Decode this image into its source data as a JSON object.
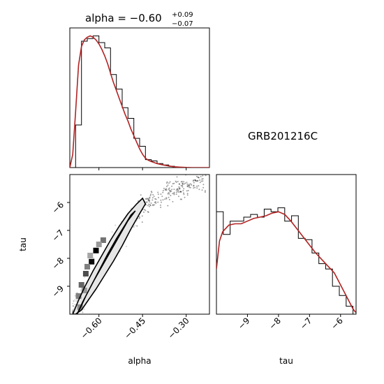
{
  "title": {
    "prefix": "alpha = −0.60",
    "upper": "+0.09",
    "lower": "−0.07"
  },
  "annotation": "GRB201216C",
  "colors": {
    "kde": "#b22222",
    "hist": "#000000",
    "contour": "#000000"
  },
  "chart_data": [
    {
      "type": "histogram",
      "panel": "alpha-marginal",
      "xlim": [
        -0.7,
        -0.22
      ],
      "ylim": [
        0,
        1.05
      ],
      "bin_edges": [
        -0.7,
        -0.68,
        -0.66,
        -0.64,
        -0.62,
        -0.6,
        -0.58,
        -0.56,
        -0.54,
        -0.52,
        -0.5,
        -0.48,
        -0.46,
        -0.44,
        -0.42,
        -0.4,
        -0.38,
        -0.36,
        -0.34,
        -0.32,
        -0.3,
        -0.28,
        -0.26,
        -0.24
      ],
      "counts": [
        0.0,
        0.32,
        0.95,
        0.97,
        0.99,
        0.94,
        0.9,
        0.7,
        0.59,
        0.45,
        0.37,
        0.22,
        0.16,
        0.06,
        0.05,
        0.03,
        0.02,
        0.01,
        0.0,
        0.0,
        0.0,
        0.0,
        0.0
      ],
      "kde": {
        "x": [
          -0.7,
          -0.69,
          -0.68,
          -0.67,
          -0.66,
          -0.65,
          -0.64,
          -0.63,
          -0.62,
          -0.61,
          -0.6,
          -0.59,
          -0.58,
          -0.57,
          -0.56,
          -0.55,
          -0.54,
          -0.53,
          -0.52,
          -0.51,
          -0.5,
          -0.49,
          -0.48,
          -0.47,
          -0.46,
          -0.45,
          -0.44,
          -0.43,
          -0.42,
          -0.4,
          -0.38,
          -0.36,
          -0.34,
          -0.32,
          -0.3,
          -0.28,
          -0.26,
          -0.24,
          -0.22
        ],
        "y": [
          0.0,
          0.1,
          0.42,
          0.77,
          0.91,
          0.96,
          0.98,
          0.99,
          0.98,
          0.96,
          0.93,
          0.89,
          0.84,
          0.78,
          0.71,
          0.64,
          0.58,
          0.52,
          0.46,
          0.4,
          0.35,
          0.29,
          0.24,
          0.19,
          0.14,
          0.1,
          0.07,
          0.055,
          0.045,
          0.03,
          0.02,
          0.012,
          0.006,
          0.003,
          0.001,
          0.0,
          0.0,
          0.0,
          0.0
        ]
      },
      "xticks": [
        -0.6,
        -0.45,
        -0.3
      ]
    },
    {
      "type": "histogram",
      "panel": "tau-marginal",
      "xlim": [
        -10.0,
        -5.5
      ],
      "ylim": [
        0,
        1.05
      ],
      "bin_edges": [
        -10.0,
        -9.78,
        -9.56,
        -9.34,
        -9.12,
        -8.9,
        -8.68,
        -8.46,
        -8.24,
        -8.02,
        -7.8,
        -7.58,
        -7.36,
        -7.14,
        -6.92,
        -6.7,
        -6.48,
        -6.26,
        -6.04,
        -5.82,
        -5.6,
        -5.5
      ],
      "counts": [
        0.77,
        0.6,
        0.7,
        0.7,
        0.73,
        0.75,
        0.73,
        0.79,
        0.77,
        0.8,
        0.7,
        0.74,
        0.57,
        0.56,
        0.46,
        0.38,
        0.34,
        0.21,
        0.14,
        0.06,
        0.0
      ],
      "kde": {
        "x": [
          -10.0,
          -9.9,
          -9.8,
          -9.6,
          -9.4,
          -9.2,
          -9.0,
          -8.8,
          -8.6,
          -8.4,
          -8.2,
          -8.0,
          -7.8,
          -7.6,
          -7.4,
          -7.2,
          -7.0,
          -6.8,
          -6.6,
          -6.4,
          -6.2,
          -6.0,
          -5.8,
          -5.6,
          -5.5
        ],
        "y": [
          0.34,
          0.55,
          0.62,
          0.67,
          0.68,
          0.68,
          0.7,
          0.72,
          0.73,
          0.74,
          0.76,
          0.77,
          0.75,
          0.7,
          0.64,
          0.58,
          0.52,
          0.46,
          0.41,
          0.36,
          0.31,
          0.22,
          0.13,
          0.04,
          0.01
        ]
      },
      "xticks": [
        -9,
        -8,
        -7,
        -6
      ],
      "xlabel": "tau"
    },
    {
      "type": "scatter",
      "panel": "alpha-tau-joint",
      "xlim": [
        -0.7,
        -0.22
      ],
      "ylim": [
        -10.0,
        -5.0
      ],
      "xticks": [
        -0.6,
        -0.45,
        -0.3
      ],
      "yticks": [
        -9,
        -8,
        -7,
        -6
      ],
      "xlabel": "alpha",
      "ylabel": "tau",
      "ridge": {
        "x": [
          -0.69,
          -0.66,
          -0.63,
          -0.6,
          -0.57,
          -0.54,
          -0.51,
          -0.48,
          -0.45,
          -0.42,
          -0.39,
          -0.36,
          -0.33,
          -0.3,
          -0.27,
          -0.24
        ],
        "y": [
          -9.95,
          -9.45,
          -8.95,
          -8.4,
          -7.9,
          -7.4,
          -6.95,
          -6.55,
          -6.2,
          -5.95,
          -5.8,
          -5.65,
          -5.5,
          -5.4,
          -5.3,
          -5.2
        ]
      },
      "contour_outer": {
        "x": [
          -0.69,
          -0.67,
          -0.65,
          -0.62,
          -0.59,
          -0.56,
          -0.53,
          -0.5,
          -0.47,
          -0.45,
          -0.44,
          -0.46,
          -0.49,
          -0.52,
          -0.55,
          -0.58,
          -0.61,
          -0.64,
          -0.66,
          -0.68,
          -0.69
        ],
        "y": [
          -10.0,
          -9.5,
          -9.05,
          -8.45,
          -7.9,
          -7.35,
          -6.85,
          -6.4,
          -6.05,
          -5.85,
          -6.05,
          -6.4,
          -6.95,
          -7.55,
          -8.1,
          -8.6,
          -9.1,
          -9.55,
          -9.85,
          -10.0,
          -10.0
        ]
      },
      "contour_inner": {
        "x": [
          -0.675,
          -0.655,
          -0.63,
          -0.6,
          -0.57,
          -0.54,
          -0.51,
          -0.49,
          -0.475,
          -0.5,
          -0.53,
          -0.56,
          -0.59,
          -0.62,
          -0.645,
          -0.665,
          -0.675
        ],
        "y": [
          -10.0,
          -9.55,
          -9.05,
          -8.45,
          -7.85,
          -7.3,
          -6.8,
          -6.45,
          -6.3,
          -6.65,
          -7.2,
          -7.75,
          -8.3,
          -8.85,
          -9.35,
          -9.8,
          -10.0
        ]
      },
      "density_cells": [
        {
          "x": -0.61,
          "y": -7.72,
          "v": 1.0
        },
        {
          "x": -0.625,
          "y": -8.12,
          "v": 0.95
        },
        {
          "x": -0.585,
          "y": -7.35,
          "v": 0.55
        },
        {
          "x": -0.645,
          "y": -8.55,
          "v": 0.7
        },
        {
          "x": -0.66,
          "y": -8.95,
          "v": 0.6
        },
        {
          "x": -0.67,
          "y": -9.35,
          "v": 0.5
        },
        {
          "x": -0.665,
          "y": -9.75,
          "v": 0.45
        },
        {
          "x": -0.64,
          "y": -8.3,
          "v": 0.5
        },
        {
          "x": -0.6,
          "y": -7.5,
          "v": 0.4
        },
        {
          "x": -0.63,
          "y": -7.9,
          "v": 0.35
        },
        {
          "x": -0.65,
          "y": -9.15,
          "v": 0.4
        }
      ]
    }
  ]
}
